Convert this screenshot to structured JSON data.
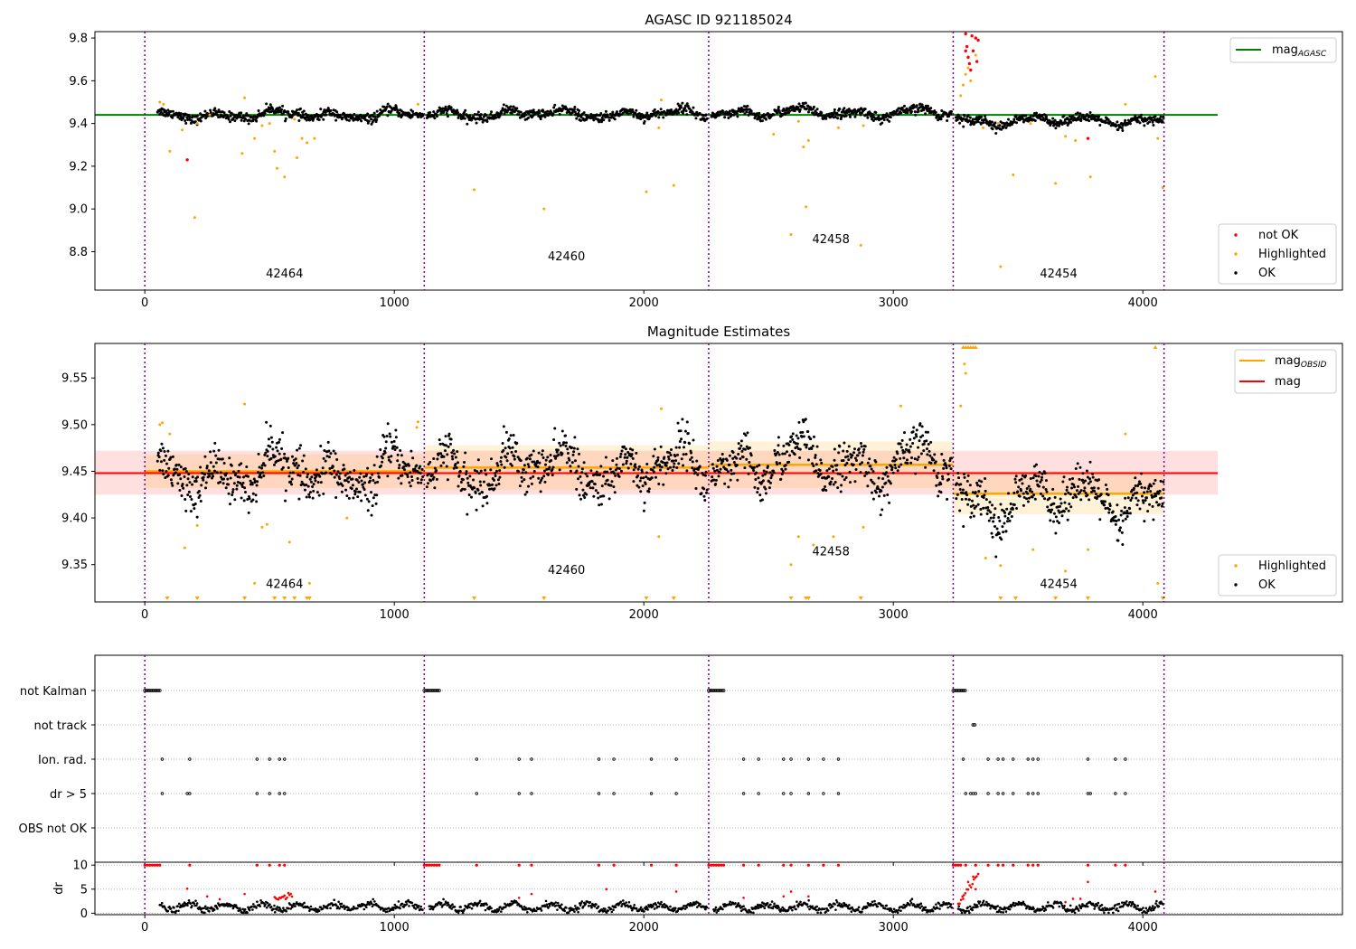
{
  "figure": {
    "obsid_boundaries": [
      0,
      1120,
      2260,
      3240,
      4085
    ],
    "obsids": [
      {
        "label": "42464",
        "x_start": 0,
        "x_end": 1120
      },
      {
        "label": "42460",
        "x_start": 1120,
        "x_end": 2260
      },
      {
        "label": "42458",
        "x_start": 2260,
        "x_end": 3240
      },
      {
        "label": "42454",
        "x_start": 3240,
        "x_end": 4085
      }
    ],
    "colors": {
      "ok": "#000000",
      "highlighted": "#ffa500",
      "not_ok": "#ff0000",
      "agasc_line": "#008000",
      "obsid_line": "#ffa500",
      "mag_line": "#ff0000",
      "boundary": "#800080"
    }
  },
  "chart_data": [
    {
      "id": "agasc",
      "type": "scatter",
      "title": "AGASC ID 921185024",
      "xlim": [
        -200,
        4800
      ],
      "xticks": [
        0,
        1000,
        2000,
        3000,
        4000
      ],
      "ylim": [
        8.62,
        9.83
      ],
      "yticks": [
        8.8,
        9.0,
        9.2,
        9.4,
        9.6,
        9.8
      ],
      "mag_agasc": 9.44,
      "legend_line": {
        "label": "mag",
        "subscript": "AGASC",
        "position": "top-right"
      },
      "legend_points": {
        "position": "bottom-right",
        "entries": [
          "not OK",
          "Highlighted",
          "OK"
        ]
      },
      "obsid_label_y": [
        8.68,
        8.76,
        8.84,
        8.68
      ],
      "highlighted_points": [
        [
          60,
          9.5
        ],
        [
          75,
          9.49
        ],
        [
          100,
          9.27
        ],
        [
          150,
          9.37
        ],
        [
          200,
          8.96
        ],
        [
          210,
          9.4
        ],
        [
          260,
          9.44
        ],
        [
          390,
          9.26
        ],
        [
          400,
          9.52
        ],
        [
          440,
          9.33
        ],
        [
          470,
          9.39
        ],
        [
          500,
          9.4
        ],
        [
          520,
          9.27
        ],
        [
          530,
          9.19
        ],
        [
          560,
          9.15
        ],
        [
          600,
          9.42
        ],
        [
          610,
          9.24
        ],
        [
          630,
          9.33
        ],
        [
          650,
          9.31
        ],
        [
          680,
          9.33
        ],
        [
          1095,
          9.49
        ],
        [
          1320,
          9.09
        ],
        [
          1600,
          9.0
        ],
        [
          2010,
          9.08
        ],
        [
          2060,
          9.38
        ],
        [
          2070,
          9.51
        ],
        [
          2120,
          9.11
        ],
        [
          2520,
          9.35
        ],
        [
          2590,
          8.88
        ],
        [
          2620,
          9.41
        ],
        [
          2640,
          9.29
        ],
        [
          2650,
          9.01
        ],
        [
          2660,
          9.32
        ],
        [
          2870,
          8.83
        ],
        [
          2880,
          9.39
        ],
        [
          2780,
          9.38
        ],
        [
          3270,
          9.53
        ],
        [
          3280,
          9.58
        ],
        [
          3290,
          9.63
        ],
        [
          3300,
          9.66
        ],
        [
          3310,
          9.6
        ],
        [
          3330,
          9.72
        ],
        [
          3360,
          9.38
        ],
        [
          3420,
          9.4
        ],
        [
          3430,
          8.73
        ],
        [
          3480,
          9.16
        ],
        [
          3550,
          9.4
        ],
        [
          3650,
          9.12
        ],
        [
          3690,
          9.34
        ],
        [
          3730,
          9.32
        ],
        [
          3790,
          9.15
        ],
        [
          3930,
          9.49
        ],
        [
          4050,
          9.62
        ],
        [
          4060,
          9.33
        ],
        [
          4080,
          9.1
        ]
      ],
      "not_ok_points": [
        [
          170,
          9.23
        ],
        [
          3290,
          9.82
        ],
        [
          3295,
          9.76
        ],
        [
          3300,
          9.71
        ],
        [
          3305,
          9.68
        ],
        [
          3310,
          9.65
        ],
        [
          3315,
          9.81
        ],
        [
          3320,
          9.74
        ],
        [
          3330,
          9.8
        ],
        [
          3340,
          9.79
        ],
        [
          3335,
          9.69
        ],
        [
          3780,
          9.33
        ],
        [
          3290,
          9.74
        ]
      ]
    },
    {
      "id": "estimates",
      "type": "scatter",
      "title": "Magnitude Estimates",
      "xlim": [
        -200,
        4800
      ],
      "xticks": [
        0,
        1000,
        2000,
        3000,
        4000
      ],
      "ylim": [
        9.31,
        9.587
      ],
      "yticks": [
        9.35,
        9.4,
        9.45,
        9.5,
        9.55
      ],
      "mag": 9.448,
      "mag_band": [
        9.425,
        9.472
      ],
      "obsid_mags": [
        {
          "x": [
            0,
            1120
          ],
          "mag": 9.45,
          "band": [
            9.432,
            9.468
          ]
        },
        {
          "x": [
            1120,
            2260
          ],
          "mag": 9.454,
          "band": [
            9.43,
            9.478
          ]
        },
        {
          "x": [
            2260,
            3240
          ],
          "mag": 9.457,
          "band": [
            9.432,
            9.482
          ]
        },
        {
          "x": [
            3240,
            4085
          ],
          "mag": 9.426,
          "band": [
            9.404,
            9.45
          ]
        }
      ],
      "legend_lines": {
        "position": "top-right",
        "entries": [
          {
            "label": "mag",
            "subscript": "OBSID"
          },
          {
            "label": "mag",
            "subscript": ""
          }
        ]
      },
      "legend_points": {
        "position": "bottom-right",
        "entries": [
          "Highlighted",
          "OK"
        ]
      },
      "obsid_label_y": [
        9.325,
        9.34,
        9.36,
        9.325
      ],
      "highlighted_points": [
        [
          60,
          9.5
        ],
        [
          70,
          9.502
        ],
        [
          100,
          9.49
        ],
        [
          160,
          9.368
        ],
        [
          210,
          9.392
        ],
        [
          400,
          9.522
        ],
        [
          440,
          9.33
        ],
        [
          470,
          9.39
        ],
        [
          490,
          9.393
        ],
        [
          580,
          9.374
        ],
        [
          660,
          9.33
        ],
        [
          810,
          9.4
        ],
        [
          1090,
          9.497
        ],
        [
          1095,
          9.503
        ],
        [
          2060,
          9.38
        ],
        [
          2070,
          9.517
        ],
        [
          2590,
          9.35
        ],
        [
          2620,
          9.38
        ],
        [
          2680,
          9.371
        ],
        [
          2760,
          9.38
        ],
        [
          2880,
          9.39
        ],
        [
          3030,
          9.52
        ],
        [
          3270,
          9.52
        ],
        [
          3285,
          9.565
        ],
        [
          3290,
          9.555
        ],
        [
          3370,
          9.357
        ],
        [
          3430,
          9.349
        ],
        [
          3560,
          9.366
        ],
        [
          3690,
          9.343
        ],
        [
          3780,
          9.366
        ],
        [
          3930,
          9.49
        ],
        [
          4060,
          9.33
        ]
      ],
      "clipped_low_x": [
        90,
        210,
        400,
        520,
        560,
        600,
        650,
        660,
        1320,
        1600,
        2010,
        2120,
        2590,
        2650,
        2660,
        2870,
        3430,
        3490,
        3650,
        3780,
        4080
      ],
      "clipped_high_x": [
        3280,
        3290,
        3300,
        3310,
        3320,
        3330,
        4050
      ]
    },
    {
      "id": "flags",
      "type": "scatter",
      "title": "",
      "xlim": [
        -200,
        4800
      ],
      "xticks": [
        0,
        1000,
        2000,
        3000,
        4000
      ],
      "categories": [
        "not Kalman",
        "not track",
        "Ion. rad.",
        "dr > 5",
        "OBS not OK"
      ],
      "flag_points": {
        "not Kalman": [
          [
            0,
            60
          ],
          [
            1120,
            1180
          ],
          [
            2260,
            2320
          ],
          [
            3240,
            3290
          ]
        ],
        "not track": [
          [
            3320,
            3330
          ]
        ],
        "Ion. rad.": [
          70,
          180,
          450,
          500,
          540,
          560,
          1330,
          1500,
          1550,
          1820,
          1880,
          2030,
          2130,
          2400,
          2460,
          2560,
          2590,
          2660,
          2720,
          2780,
          3280,
          3380,
          3420,
          3440,
          3480,
          3540,
          3560,
          3580,
          3780,
          3890,
          3930
        ],
        "dr > 5": [
          70,
          170,
          180,
          450,
          500,
          540,
          560,
          1330,
          1500,
          1550,
          1820,
          1880,
          2030,
          2130,
          2400,
          2460,
          2560,
          2590,
          2660,
          2720,
          2780,
          3290,
          3310,
          3320,
          3330,
          3380,
          3420,
          3440,
          3480,
          3540,
          3560,
          3580,
          3780,
          3790,
          3890,
          3930
        ]
      }
    },
    {
      "id": "dr",
      "type": "scatter",
      "title": "",
      "ylabel": "dr",
      "xlim": [
        -200,
        4800
      ],
      "xticks": [
        0,
        1000,
        2000,
        3000,
        4000
      ],
      "xtick_labels": [
        "0",
        "1000",
        "2000",
        "3000",
        "4000"
      ],
      "ylim": [
        -0.3,
        10.6
      ],
      "yticks": [
        0,
        5,
        10
      ],
      "grid_y": [
        0,
        5,
        10
      ],
      "red_points": [
        [
          170,
          5.1
        ],
        [
          250,
          3.5
        ],
        [
          300,
          2.9
        ],
        [
          400,
          4.0
        ],
        [
          1500,
          3.2
        ],
        [
          1550,
          4.0
        ],
        [
          1850,
          5.0
        ],
        [
          2130,
          4.5
        ],
        [
          2400,
          3.2
        ],
        [
          2560,
          3.5
        ],
        [
          2590,
          4.5
        ],
        [
          2660,
          3.5
        ],
        [
          3280,
          3.0
        ],
        [
          3300,
          6.5
        ],
        [
          3320,
          7.6
        ],
        [
          3330,
          5.0
        ],
        [
          3690,
          2.3
        ],
        [
          3720,
          3.0
        ],
        [
          3750,
          3.0
        ],
        [
          3780,
          6.5
        ],
        [
          4050,
          4.5
        ]
      ],
      "red_run": {
        "x": [
          520,
          590
        ],
        "y": [
          3.0,
          3.8
        ]
      },
      "red_run2": {
        "x": [
          3260,
          3340
        ],
        "y": [
          2.0,
          8.0
        ]
      },
      "capped_red_x": [
        0,
        10,
        20,
        30,
        40,
        50,
        60,
        180,
        450,
        500,
        540,
        560,
        1120,
        1130,
        1140,
        1150,
        1160,
        1170,
        1180,
        1330,
        1500,
        1550,
        1820,
        1880,
        2030,
        2130,
        2260,
        2270,
        2280,
        2290,
        2300,
        2310,
        2320,
        2400,
        2460,
        2560,
        2590,
        2660,
        2720,
        2780,
        3240,
        3250,
        3260,
        3270,
        3290,
        3330,
        3380,
        3420,
        3440,
        3480,
        3540,
        3560,
        3580,
        3780,
        3890,
        3930
      ]
    }
  ]
}
